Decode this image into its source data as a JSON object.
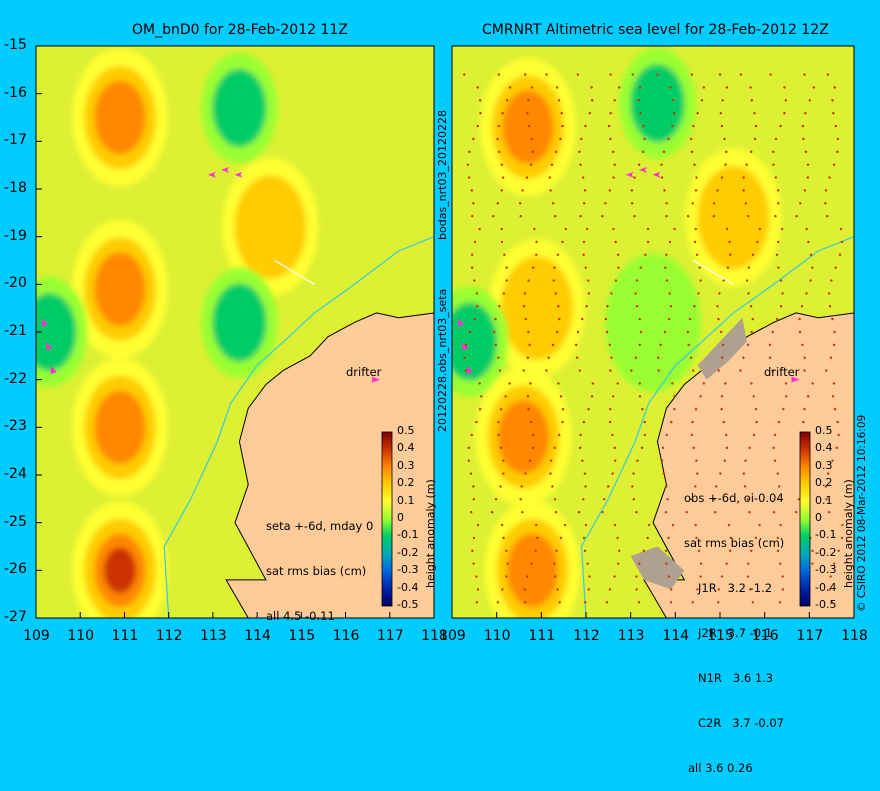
{
  "chart_data": [
    {
      "type": "heatmap",
      "title": "OM_bnD0 for 28-Feb-2012 11Z",
      "xlim": [
        109,
        118
      ],
      "ylim": [
        -27,
        -15
      ],
      "x_ticks": [
        "109",
        "110",
        "111",
        "112",
        "113",
        "114",
        "115",
        "116",
        "117",
        "118"
      ],
      "y_ticks": [
        "-15",
        "-16",
        "-17",
        "-18",
        "-19",
        "-20",
        "-21",
        "-22",
        "-23",
        "-24",
        "-25",
        "-26",
        "-27"
      ],
      "colorbar": {
        "label": "height anomaly (m)",
        "min": -0.5,
        "max": 0.5,
        "ticks": [
          "0.5",
          "0.4",
          "0.3",
          "0.2",
          "0.1",
          "0",
          "-0.1",
          "-0.2",
          "-0.3",
          "-0.4",
          "-0.5"
        ]
      },
      "stats": [
        "seta +-6d, mday 0",
        "sat rms bias (cm)",
        "all 4.5 -0.11"
      ],
      "drifter_label": "drifter",
      "side_label": "bodas_nrt03_20120228",
      "anomaly_centers": [
        {
          "lon": 110.9,
          "lat": -16.5,
          "value": 0.35
        },
        {
          "lon": 113.6,
          "lat": -16.3,
          "value": -0.1
        },
        {
          "lon": 114.3,
          "lat": -18.8,
          "value": 0.25
        },
        {
          "lon": 110.9,
          "lat": -20.1,
          "value": 0.3
        },
        {
          "lon": 113.6,
          "lat": -20.8,
          "value": -0.05
        },
        {
          "lon": 109.3,
          "lat": -21.0,
          "value": -0.1
        },
        {
          "lon": 110.9,
          "lat": -23.0,
          "value": 0.35
        },
        {
          "lon": 110.9,
          "lat": -26.0,
          "value": 0.4
        }
      ]
    },
    {
      "type": "heatmap",
      "title": "CMRNRT Altimetric sea level  for 28-Feb-2012 12Z",
      "xlim": [
        109,
        118
      ],
      "ylim": [
        -27,
        -15
      ],
      "x_ticks": [
        "109",
        "110",
        "111",
        "112",
        "113",
        "114",
        "115",
        "116",
        "117",
        "118"
      ],
      "colorbar": {
        "label": "height anomaly (m)",
        "min": -0.5,
        "max": 0.5,
        "ticks": [
          "0.5",
          "0.4",
          "0.3",
          "0.2",
          "0.1",
          "0",
          "-0.1",
          "-0.2",
          "-0.3",
          "-0.4",
          "-0.5"
        ]
      },
      "stats": [
        "obs +-6d, oi-0.04",
        "sat rms bias (cm)",
        "J1R   3.2 -1.2",
        "J2R   3.7 -0.1",
        "N1R   3.6 1.3",
        "C2R   3.7 -0.07",
        "all 3.6 0.26"
      ],
      "drifter_label": "drifter",
      "side_label": "20120228.obs_nrt03_seta",
      "footer": "CSIRO 2012   08-Mar-2012 10:16:09",
      "anomaly_centers": [
        {
          "lon": 110.7,
          "lat": -16.7,
          "value": 0.3
        },
        {
          "lon": 113.6,
          "lat": -16.2,
          "value": -0.1
        },
        {
          "lon": 115.3,
          "lat": -18.6,
          "value": 0.25
        },
        {
          "lon": 110.9,
          "lat": -20.5,
          "value": 0.25
        },
        {
          "lon": 113.5,
          "lat": -20.8,
          "value": 0.0
        },
        {
          "lon": 109.4,
          "lat": -21.2,
          "value": -0.1
        },
        {
          "lon": 110.6,
          "lat": -23.2,
          "value": 0.35
        },
        {
          "lon": 110.8,
          "lat": -26.0,
          "value": 0.35
        }
      ]
    }
  ]
}
